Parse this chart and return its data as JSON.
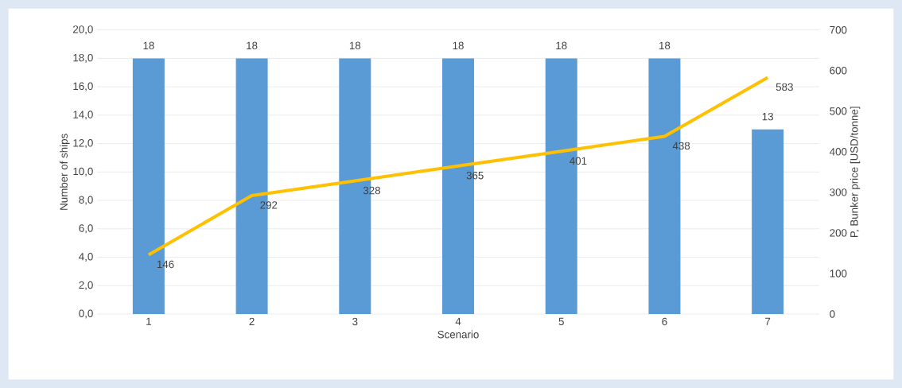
{
  "chart_data": {
    "type": "bar",
    "categories": [
      "1",
      "2",
      "3",
      "4",
      "5",
      "6",
      "7"
    ],
    "xlabel": "Scenario",
    "ylabel": "Number of ships",
    "y2label": "P, Bunker price [USD/tonne]",
    "series": [
      {
        "color": "#5b9bd5",
        "values": [
          18,
          18,
          18,
          18,
          18,
          18,
          13
        ]
      },
      {
        "type": "line",
        "axis": "y2",
        "color": "#ffc000",
        "values": [
          146,
          292,
          328,
          365,
          401,
          438,
          583
        ]
      }
    ],
    "ylim": [
      0,
      20
    ],
    "yticks": [
      {
        "value": 0,
        "label": "0,0"
      },
      {
        "value": 2,
        "label": "2,0"
      },
      {
        "value": 4,
        "label": "4,0"
      },
      {
        "value": 6,
        "label": "6,0"
      },
      {
        "value": 8,
        "label": "8,0"
      },
      {
        "value": 10,
        "label": "10,0"
      },
      {
        "value": 12,
        "label": "12,0"
      },
      {
        "value": 14,
        "label": "14,0"
      },
      {
        "value": 16,
        "label": "16,0"
      },
      {
        "value": 18,
        "label": "18,0"
      },
      {
        "value": 20,
        "label": "20,0"
      }
    ],
    "y2lim": [
      0,
      700
    ],
    "y2ticks": [
      0,
      100,
      200,
      300,
      400,
      500,
      600,
      700
    ],
    "grid": "y",
    "data_labels": true
  }
}
